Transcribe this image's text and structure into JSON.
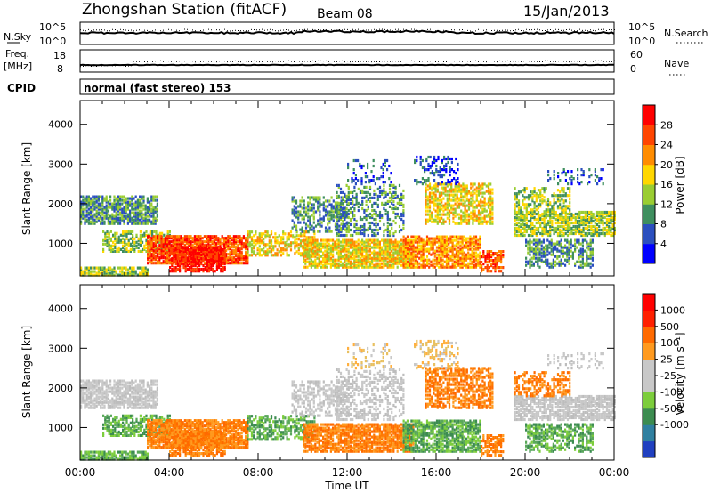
{
  "header": {
    "station": "Zhongshan Station (fitACF)",
    "beam": "Beam 08",
    "date": "15/Jan/2013"
  },
  "strips": {
    "nsky_label": "N.Sky",
    "nsky_ticks": [
      "10^5",
      "10^0"
    ],
    "nsearch_ticks": [
      "10^5",
      "10^0"
    ],
    "nsearch_label": "N.Search",
    "freq_label_1": "Freq.",
    "freq_label_2": "[MHz]",
    "freq_ticks": [
      "18",
      "8"
    ],
    "nave_ticks": [
      "60",
      "0"
    ],
    "nave_label": "Nave",
    "cpid_label": "CPID",
    "cpid_text": "normal (fast stereo) 153"
  },
  "chart_data": [
    {
      "type": "heatmap",
      "name": "power",
      "ylabel": "Slant Range [km]",
      "xlabel": "",
      "y_ticks": [
        1000,
        2000,
        3000,
        4000
      ],
      "ylim": [
        180,
        4600
      ],
      "xlim_hours": [
        0,
        24
      ],
      "colorbar": {
        "label": "Power [dB]",
        "ticks": [
          "28",
          "24",
          "20",
          "16",
          "12",
          "8",
          "4"
        ],
        "colors": [
          "#0000ff",
          "#2b4fbf",
          "#3f8f5f",
          "#9acd32",
          "#ffd700",
          "#ff8c00",
          "#ff4500",
          "#ff0000"
        ]
      }
    },
    {
      "type": "heatmap",
      "name": "velocity",
      "ylabel": "Slant Range [km]",
      "xlabel": "Time UT",
      "y_ticks": [
        1000,
        2000,
        3000,
        4000
      ],
      "ylim": [
        180,
        4600
      ],
      "xlim_hours": [
        0,
        24
      ],
      "x_ticks": [
        "00:00",
        "04:00",
        "08:00",
        "12:00",
        "16:00",
        "20:00",
        "00:00"
      ],
      "colorbar": {
        "label": "Velocity [m s⁻¹]",
        "ticks": [
          "1000",
          "500",
          "100",
          "25",
          "-25",
          "-100",
          "-500",
          "-1000"
        ],
        "colors": [
          "#2040c0",
          "#3080a0",
          "#3c8c50",
          "#7ccd3c",
          "#c8c8c8",
          "#c8c8c8",
          "#ff9a1f",
          "#ff6a00",
          "#ff2000",
          "#ff0000"
        ]
      }
    }
  ]
}
